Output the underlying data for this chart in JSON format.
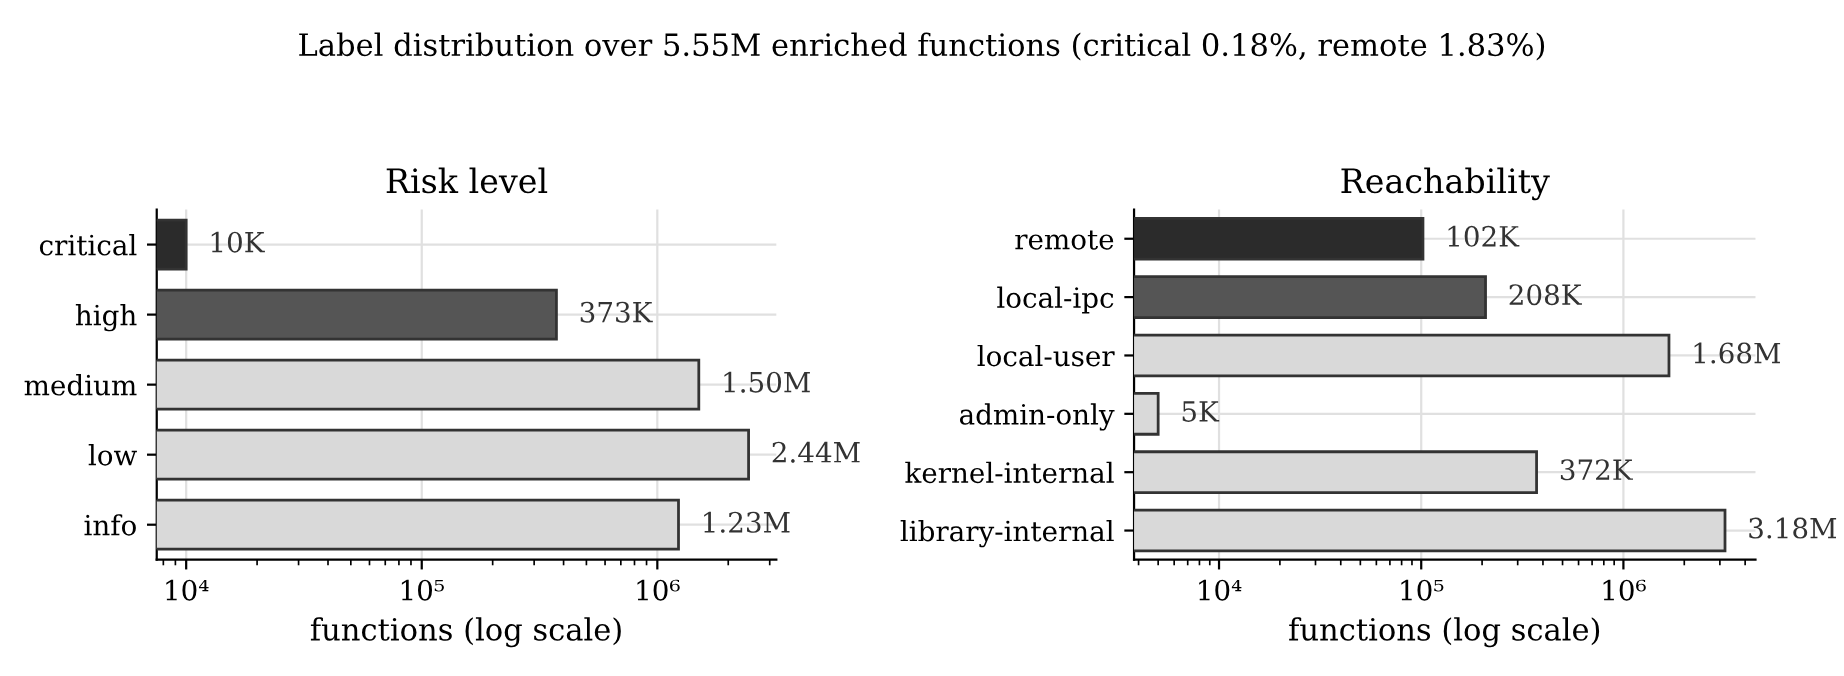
{
  "chart_data": [
    {
      "type": "bar",
      "orientation": "horizontal",
      "title": "Risk level",
      "xlabel": "functions (log scale)",
      "log": "x",
      "grid": true,
      "annotations": [
        "Label distribution over 5.55M enriched functions (critical 0.18%, remote 1.83%)"
      ],
      "categories": [
        "critical",
        "high",
        "medium",
        "low",
        "info"
      ],
      "values": [
        10000,
        373000,
        1500000,
        2440000,
        1230000
      ],
      "colors": [
        "#2b2b2b",
        "#555555",
        "#d9d9d9",
        "#d9d9d9",
        "#d9d9d9"
      ],
      "value_labels": [
        "10K",
        "373K",
        "1.50M",
        "2.44M",
        "1.23M"
      ],
      "xlim": [
        7500,
        3200000
      ],
      "xticks": [
        {
          "value": 10000,
          "label": "10⁴"
        },
        {
          "value": 100000,
          "label": "10⁵"
        },
        {
          "value": 1000000,
          "label": "10⁶"
        }
      ]
    },
    {
      "type": "bar",
      "orientation": "horizontal",
      "title": "Reachability",
      "xlabel": "functions (log scale)",
      "log": "x",
      "grid": true,
      "categories": [
        "remote",
        "local-ipc",
        "local-user",
        "admin-only",
        "kernel-internal",
        "library-internal"
      ],
      "values": [
        102000,
        208000,
        1680000,
        5000,
        372000,
        3180000
      ],
      "colors": [
        "#2b2b2b",
        "#555555",
        "#d9d9d9",
        "#d9d9d9",
        "#d9d9d9",
        "#d9d9d9"
      ],
      "value_labels": [
        "102K",
        "208K",
        "1.68M",
        "5K",
        "372K",
        "3.18M"
      ],
      "xlim": [
        3800,
        4500000
      ],
      "xticks": [
        {
          "value": 10000,
          "label": "10⁴"
        },
        {
          "value": 100000,
          "label": "10⁵"
        },
        {
          "value": 1000000,
          "label": "10⁶"
        }
      ]
    }
  ]
}
